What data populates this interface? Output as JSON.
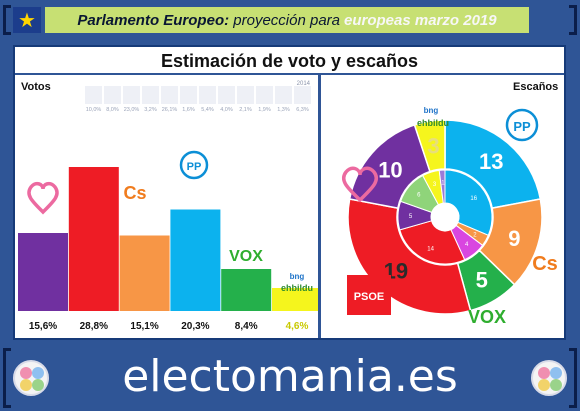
{
  "header": {
    "title_main": "Parlamento Europeo",
    "title_sep": ":",
    "title_rest": "proyección para",
    "title_highlight": "europeas marzo 2019"
  },
  "panel": {
    "title": "Estimación de voto y escaños"
  },
  "footer": {
    "brand": "electomania.es"
  },
  "colors": {
    "podemos": "#7030a0",
    "psoe": "#ee1c25",
    "cs": "#f79646",
    "pp": "#0cb2ee",
    "vox": "#24b04b",
    "ahora": "#f5f51d"
  },
  "chart_data": [
    {
      "type": "bar",
      "title": "Votos",
      "categories": [
        "Podemos",
        "PSOE",
        "Cs",
        "PP",
        "VOX",
        "Ahora Repúblicas"
      ],
      "values": [
        15.6,
        28.8,
        15.1,
        20.3,
        8.4,
        4.6
      ],
      "value_labels": [
        "15,6%",
        "28,8%",
        "15,1%",
        "20,3%",
        "8,4%",
        "4,6%"
      ],
      "party_logos": [
        "heart",
        "PSOE",
        "Cs",
        "PP",
        "VOX",
        "bng ehbildu"
      ],
      "inset_2014": {
        "label": "2014",
        "values": [
          "10,0%",
          "8,0%",
          "23,0%",
          "3,2%",
          "26,1%",
          "1,6%",
          "5,4%",
          "4,0%",
          "2,1%",
          "1,9%",
          "1,3%",
          "6,3%"
        ]
      }
    },
    {
      "type": "pie",
      "title": "Escaños",
      "outer_labels": [
        "PP",
        "Cs",
        "VOX",
        "PSOE",
        "Podemos",
        "Ahora Repúblicas"
      ],
      "outer_values": [
        13,
        9,
        5,
        19,
        10,
        3
      ],
      "inner_values": [
        16,
        2,
        4,
        14,
        5,
        6,
        3,
        1
      ],
      "logos": [
        "PP",
        "Cs",
        "VOX",
        "PSOE",
        "heart",
        "bng ehbildu"
      ]
    }
  ]
}
